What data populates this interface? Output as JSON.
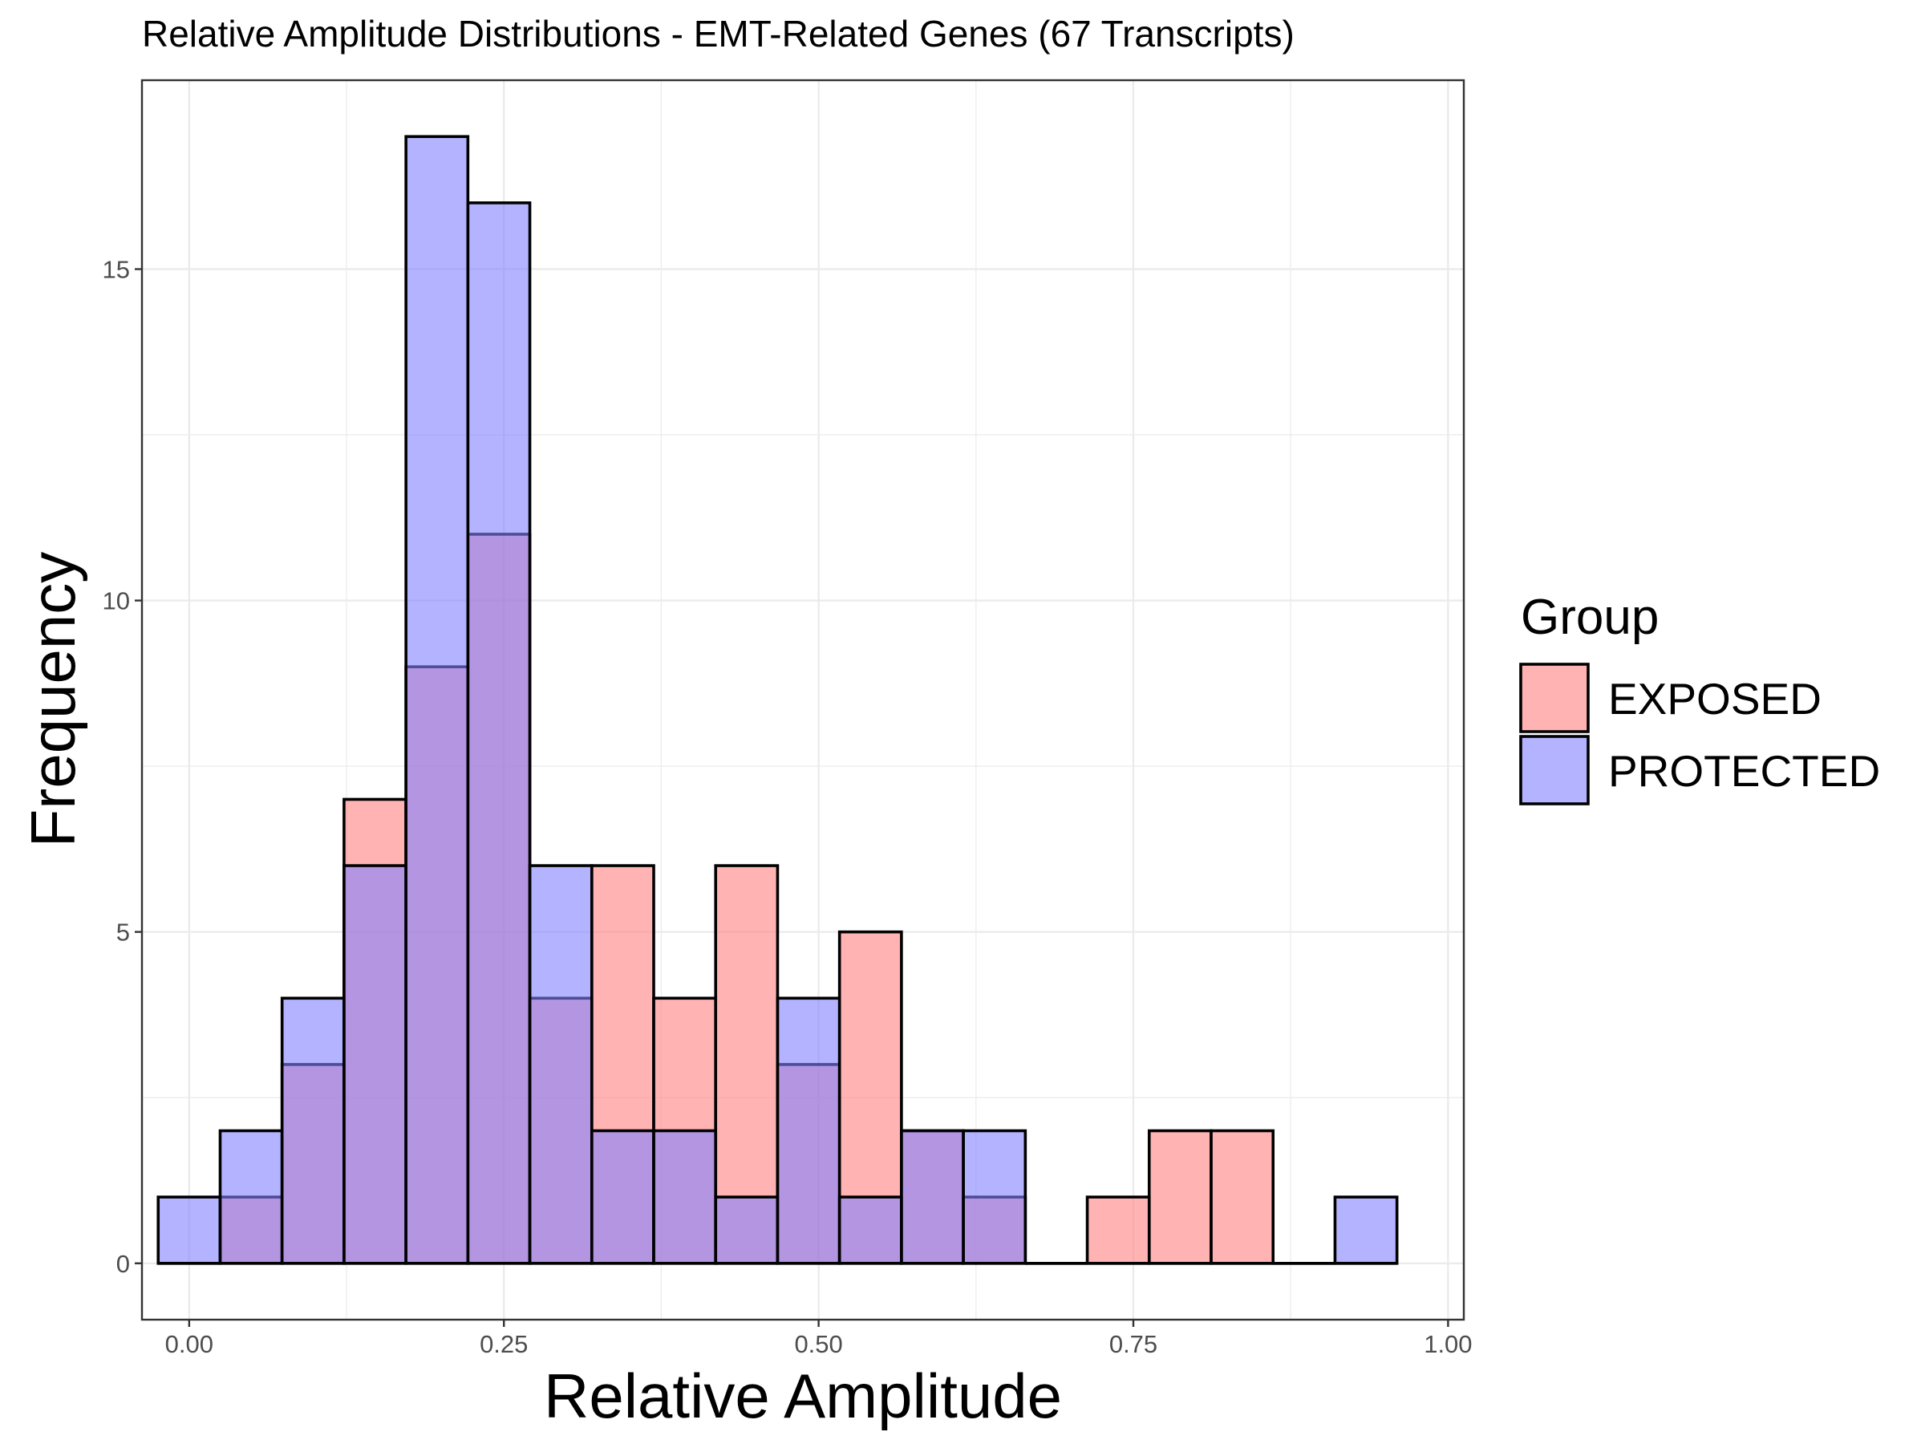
{
  "chart_data": {
    "type": "histogram",
    "title": "Relative Amplitude Distributions - EMT-Related Genes (67 Transcripts)",
    "xlabel": "Relative Amplitude",
    "ylabel": "Frequency",
    "xlim": [
      -0.0375,
      1.0125
    ],
    "ylim": [
      -0.85,
      17.85
    ],
    "x_ticks": [
      0.0,
      0.25,
      0.5,
      0.75,
      1.0
    ],
    "x_tick_labels": [
      "0.00",
      "0.25",
      "0.50",
      "0.75",
      "1.00"
    ],
    "y_ticks": [
      0,
      5,
      10,
      15
    ],
    "y_tick_labels": [
      "0",
      "5",
      "10",
      "15"
    ],
    "bin_width": 0.0492,
    "bin_centers": [
      0.0,
      0.0492,
      0.0984,
      0.1476,
      0.1968,
      0.246,
      0.2952,
      0.3444,
      0.3936,
      0.4428,
      0.492,
      0.5412,
      0.5904,
      0.6396,
      0.6888,
      0.738,
      0.7872,
      0.8364,
      0.8856,
      0.9348
    ],
    "series": [
      {
        "name": "EXPOSED",
        "color": "#ff8080",
        "values": [
          0,
          1,
          3,
          7,
          9,
          11,
          4,
          6,
          4,
          6,
          3,
          5,
          2,
          1,
          0,
          1,
          2,
          2,
          0,
          0
        ]
      },
      {
        "name": "PROTECTED",
        "color": "#8080ff",
        "values": [
          1,
          2,
          4,
          6,
          17,
          16,
          6,
          2,
          2,
          1,
          4,
          1,
          2,
          2,
          0,
          0,
          0,
          0,
          0,
          1
        ]
      }
    ],
    "legend": {
      "title": "Group",
      "position": "right",
      "entries": [
        "EXPOSED",
        "PROTECTED"
      ]
    },
    "grid": true,
    "fill_opacity": 0.6
  }
}
